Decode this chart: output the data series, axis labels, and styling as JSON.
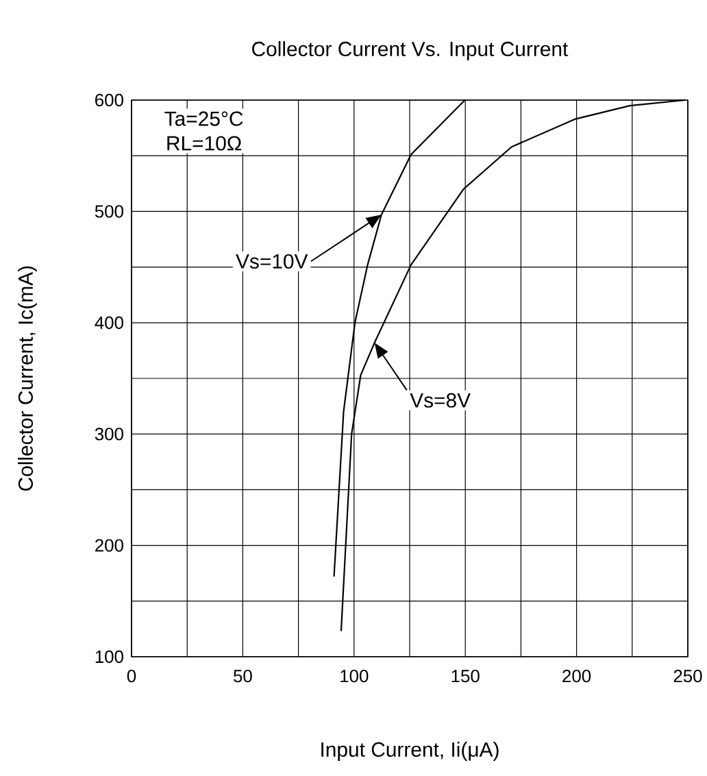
{
  "chart_data": {
    "type": "line",
    "title": "Collector Current Vs. Input Current",
    "xlabel": "Input Current, Ii(μA)",
    "ylabel": "Collector Current, Ic(mA)",
    "series": [
      {
        "name": "Vs=10V",
        "color": "#000000",
        "x": [
          91,
          95.3,
          100.4,
          106.1,
          112.3,
          125.6,
          149.8
        ],
        "values": [
          172,
          320,
          400,
          452,
          497,
          551,
          600
        ]
      },
      {
        "name": "Vs=8V",
        "color": "#000000",
        "x": [
          94.2,
          98.9,
          103,
          109.2,
          125.6,
          149.2,
          170.8,
          199.5,
          224,
          248.8
        ],
        "values": [
          123,
          300,
          353,
          382,
          452,
          520,
          558,
          583,
          595,
          600
        ]
      }
    ],
    "annotations": [
      "Ta=25°C",
      "RL=10Ω"
    ],
    "xlim": [
      0,
      250
    ],
    "ylim": [
      100,
      600
    ],
    "xticks": [
      0,
      50,
      100,
      150,
      200,
      250
    ],
    "yticks": [
      100,
      200,
      300,
      400,
      500,
      600
    ],
    "grid": true,
    "marker": "none",
    "line_style": "solid"
  }
}
